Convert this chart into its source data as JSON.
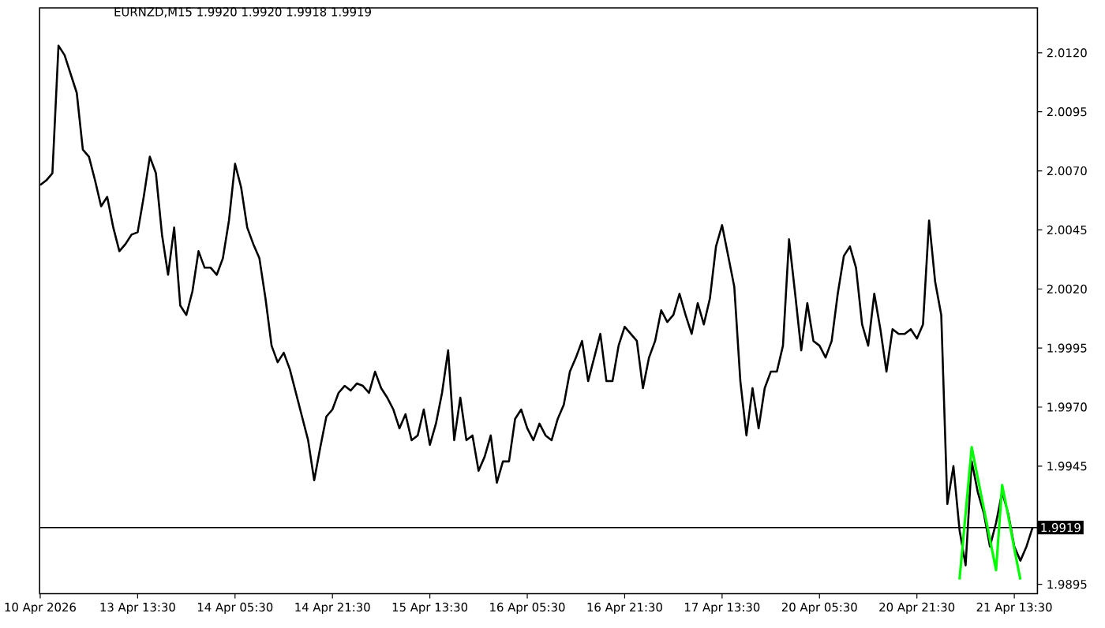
{
  "chart_data": {
    "type": "line",
    "title": "EURNZD,M15  1.9920 1.9920 1.9918 1.9919",
    "ylim": [
      1.9891,
      2.0139
    ],
    "yticks": [
      1.9895,
      1.9945,
      {
        "value": 1.997,
        "label": "1.9970"
      },
      1.9995,
      {
        "value": 2.002,
        "label": "2.0020"
      },
      2.0045,
      {
        "value": 2.007,
        "label": "2.0070"
      },
      2.0095,
      {
        "value": 2.012,
        "label": "2.0120"
      }
    ],
    "ref_lines": [
      {
        "axis": "y",
        "value": 1.9919,
        "label": "1.9919",
        "color": "#000000"
      }
    ],
    "categories": [
      "10 Apr 2026",
      null,
      null,
      null,
      null,
      null,
      null,
      null,
      null,
      null,
      null,
      null,
      null,
      null,
      null,
      null,
      "13 Apr 13:30",
      null,
      null,
      null,
      null,
      null,
      null,
      null,
      null,
      null,
      null,
      null,
      null,
      null,
      null,
      null,
      "14 Apr 05:30",
      null,
      null,
      null,
      null,
      null,
      null,
      null,
      null,
      null,
      null,
      null,
      null,
      null,
      null,
      null,
      "14 Apr 21:30",
      null,
      null,
      null,
      null,
      null,
      null,
      null,
      null,
      null,
      null,
      null,
      null,
      null,
      null,
      null,
      "15 Apr 13:30",
      null,
      null,
      null,
      null,
      null,
      null,
      null,
      null,
      null,
      null,
      null,
      null,
      null,
      null,
      null,
      "16 Apr 05:30",
      null,
      null,
      null,
      null,
      null,
      null,
      null,
      null,
      null,
      null,
      null,
      null,
      null,
      null,
      null,
      "16 Apr 21:30",
      null,
      null,
      null,
      null,
      null,
      null,
      null,
      null,
      null,
      null,
      null,
      null,
      null,
      null,
      null,
      "17 Apr 13:30",
      null,
      null,
      null,
      null,
      null,
      null,
      null,
      null,
      null,
      null,
      null,
      null,
      null,
      null,
      null,
      "20 Apr 05:30",
      null,
      null,
      null,
      null,
      null,
      null,
      null,
      null,
      null,
      null,
      null,
      null,
      null,
      null,
      null,
      "20 Apr 21:30",
      null,
      null,
      null,
      null,
      null,
      null,
      null,
      null,
      null,
      null,
      null,
      null,
      null,
      null,
      null,
      "21 Apr 13:30",
      null,
      null,
      null
    ],
    "series": [
      {
        "color": "#000000",
        "values": [
          2.0064,
          2.0066,
          2.0069,
          2.0123,
          2.0119,
          2.0111,
          2.0103,
          2.0079,
          2.0076,
          2.0066,
          2.0055,
          2.0059,
          2.0046,
          2.0036,
          2.0039,
          2.0043,
          2.0044,
          2.0059,
          2.0076,
          2.0069,
          2.0043,
          2.0026,
          2.0046,
          2.0013,
          2.0009,
          2.0019,
          2.0036,
          2.0029,
          2.0029,
          2.0026,
          2.0033,
          2.0049,
          2.0073,
          2.0063,
          2.0046,
          2.0039,
          2.0033,
          2.0016,
          1.9996,
          1.9989,
          1.9993,
          1.9986,
          1.9976,
          1.9966,
          1.9956,
          1.9939,
          1.9953,
          1.9966,
          1.9969,
          1.9976,
          1.9979,
          1.9977,
          1.998,
          1.9979,
          1.9976,
          1.9985,
          1.9978,
          1.9974,
          1.9969,
          1.9961,
          1.9967,
          1.9956,
          1.9958,
          1.9969,
          1.9954,
          1.9963,
          1.9976,
          1.9994,
          1.9956,
          1.9974,
          1.9956,
          1.9958,
          1.9943,
          1.9949,
          1.9958,
          1.9938,
          1.9947,
          1.9947,
          1.9965,
          1.9969,
          1.9961,
          1.9956,
          1.9963,
          1.9958,
          1.9956,
          1.9965,
          1.9971,
          1.9985,
          1.9991,
          1.9998,
          1.9981,
          1.9991,
          2.0001,
          1.9981,
          1.9981,
          1.9996,
          2.0004,
          2.0001,
          1.9998,
          1.9978,
          1.9991,
          1.9998,
          2.0011,
          2.0006,
          2.0009,
          2.0018,
          2.0009,
          2.0001,
          2.0014,
          2.0005,
          2.0016,
          2.0038,
          2.0047,
          2.0034,
          2.0021,
          1.9981,
          1.9958,
          1.9978,
          1.9961,
          1.9978,
          1.9985,
          1.9985,
          1.9996,
          2.0041,
          2.0018,
          1.9994,
          2.0014,
          1.9998,
          1.9996,
          1.9991,
          1.9998,
          2.0018,
          2.0034,
          2.0038,
          2.0029,
          2.0005,
          1.9996,
          2.0018,
          2.0003,
          1.9985,
          2.0003,
          2.0001,
          2.0001,
          2.0003,
          1.9999,
          2.0005,
          2.0049,
          2.0023,
          2.0009,
          1.9929,
          1.9945,
          1.9918,
          1.9903,
          1.9947,
          1.9934,
          1.9925,
          1.9911,
          1.9921,
          1.9934,
          1.9925,
          1.9911,
          1.9905,
          1.9911,
          1.9919
        ]
      },
      {
        "color": "#00ff00",
        "values": [
          null,
          null,
          null,
          null,
          null,
          null,
          null,
          null,
          null,
          null,
          null,
          null,
          null,
          null,
          null,
          null,
          null,
          null,
          null,
          null,
          null,
          null,
          null,
          null,
          null,
          null,
          null,
          null,
          null,
          null,
          null,
          null,
          null,
          null,
          null,
          null,
          null,
          null,
          null,
          null,
          null,
          null,
          null,
          null,
          null,
          null,
          null,
          null,
          null,
          null,
          null,
          null,
          null,
          null,
          null,
          null,
          null,
          null,
          null,
          null,
          null,
          null,
          null,
          null,
          null,
          null,
          null,
          null,
          null,
          null,
          null,
          null,
          null,
          null,
          null,
          null,
          null,
          null,
          null,
          null,
          null,
          null,
          null,
          null,
          null,
          null,
          null,
          null,
          null,
          null,
          null,
          null,
          null,
          null,
          null,
          null,
          null,
          null,
          null,
          null,
          null,
          null,
          null,
          null,
          null,
          null,
          null,
          null,
          null,
          null,
          null,
          null,
          null,
          null,
          null,
          null,
          null,
          null,
          null,
          null,
          null,
          null,
          null,
          null,
          null,
          null,
          null,
          null,
          null,
          null,
          null,
          null,
          null,
          null,
          null,
          null,
          null,
          null,
          null,
          null,
          null,
          null,
          null,
          null,
          null,
          null,
          null,
          null,
          null,
          null,
          null,
          1.9897,
          1.9925,
          1.9953,
          1.994,
          1.9927,
          1.9914,
          1.9901,
          1.9937,
          1.9924,
          1.991,
          1.9897,
          null,
          null
        ]
      }
    ]
  }
}
